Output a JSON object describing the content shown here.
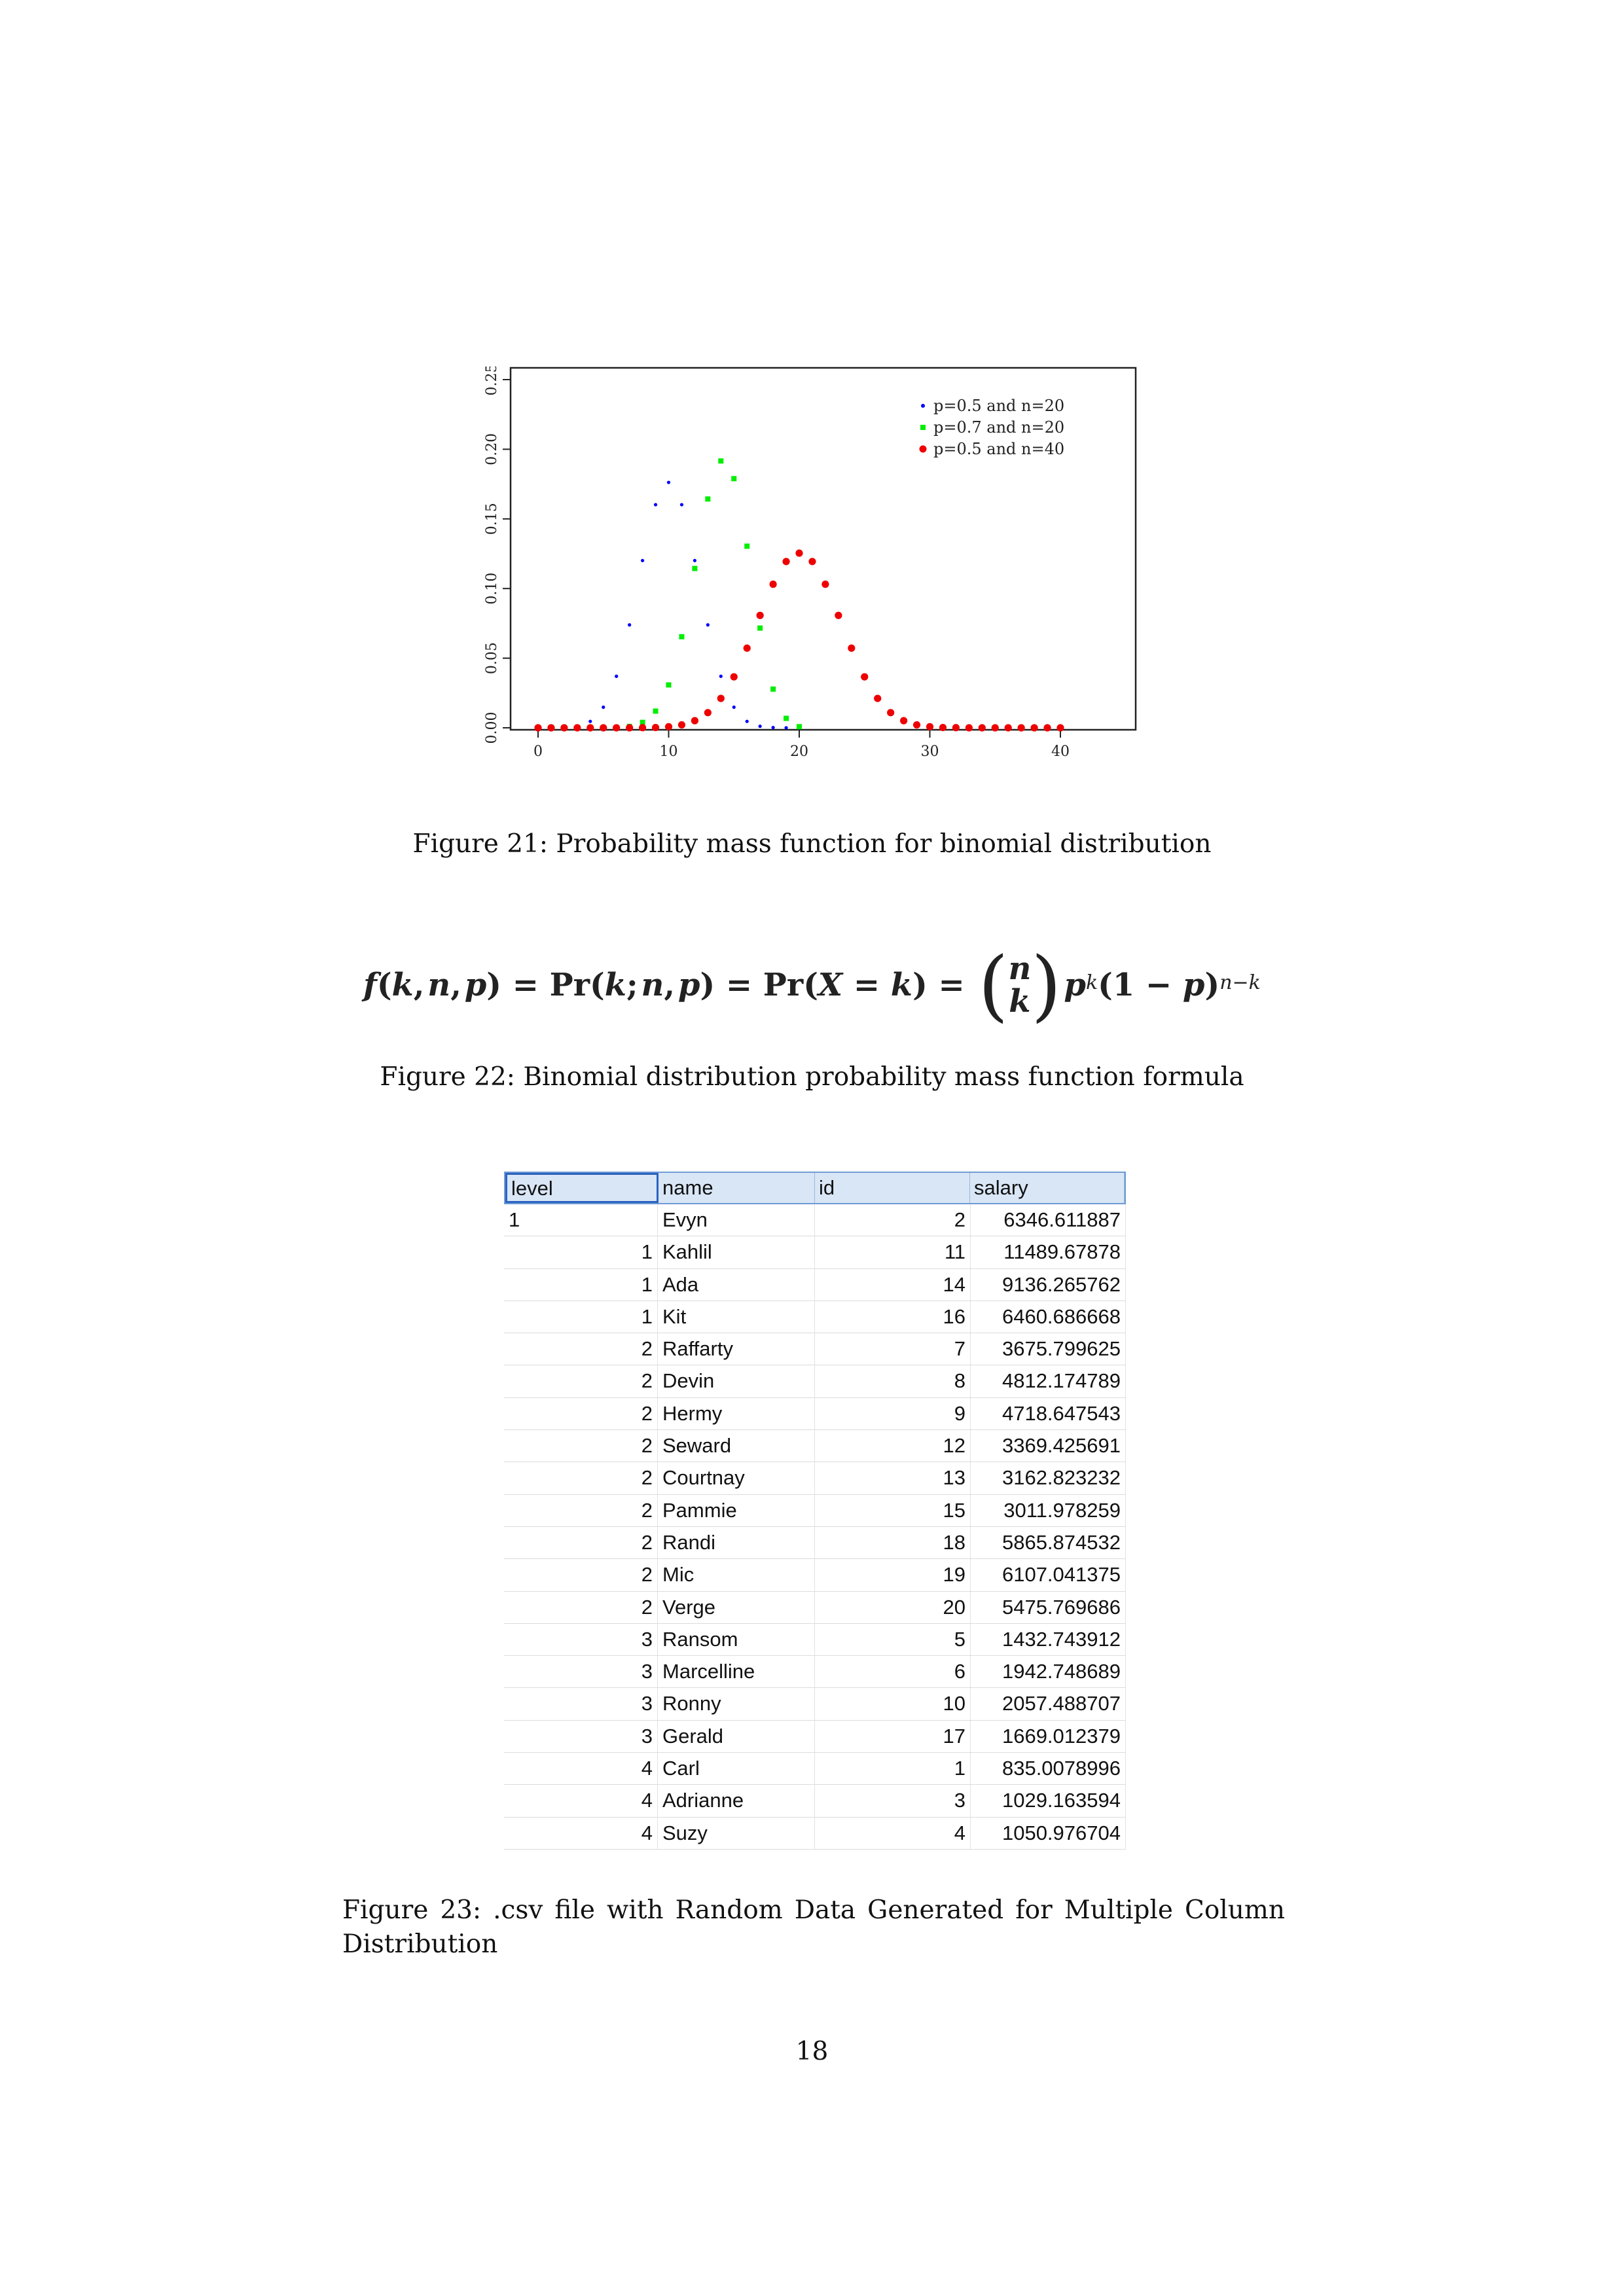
{
  "figure21": {
    "caption": "Figure 21: Probability mass function for binomial distribution",
    "chart_data": {
      "type": "scatter",
      "title": "",
      "xlabel": "",
      "ylabel": "",
      "xlim": [
        0,
        40
      ],
      "ylim": [
        0,
        0.25
      ],
      "xticks": [
        0,
        10,
        20,
        30,
        40
      ],
      "yticks": [
        "0.00",
        "0.05",
        "0.10",
        "0.15",
        "0.20",
        "0.25"
      ],
      "legend_position": "top-right",
      "grid": false,
      "series": [
        {
          "name": "p=0.5 and n=20",
          "color": "#0000ff",
          "marker_radius": 2.6,
          "x": [
            0,
            1,
            2,
            3,
            4,
            5,
            6,
            7,
            8,
            9,
            10,
            11,
            12,
            13,
            14,
            15,
            16,
            17,
            18,
            19,
            20
          ],
          "y": [
            0.0,
            0.0,
            0.0002,
            0.0011,
            0.0046,
            0.0148,
            0.037,
            0.0739,
            0.1201,
            0.1602,
            0.1762,
            0.1602,
            0.1201,
            0.0739,
            0.037,
            0.0148,
            0.0046,
            0.0011,
            0.0002,
            0.0,
            0.0
          ]
        },
        {
          "name": "p=0.7 and n=20",
          "color": "#00ee00",
          "marker_radius": 4.0,
          "x": [
            0,
            1,
            2,
            3,
            4,
            5,
            6,
            7,
            8,
            9,
            10,
            11,
            12,
            13,
            14,
            15,
            16,
            17,
            18,
            19,
            20
          ],
          "y": [
            0.0,
            0.0,
            0.0,
            0.0,
            0.0,
            0.0,
            0.0002,
            0.001,
            0.0039,
            0.012,
            0.0308,
            0.0654,
            0.1144,
            0.1643,
            0.1916,
            0.1789,
            0.1304,
            0.0716,
            0.0278,
            0.0068,
            0.0008
          ]
        },
        {
          "name": "p=0.5 and n=40",
          "color": "#ee0000",
          "marker_radius": 5.6,
          "x": [
            0,
            1,
            2,
            3,
            4,
            5,
            6,
            7,
            8,
            9,
            10,
            11,
            12,
            13,
            14,
            15,
            16,
            17,
            18,
            19,
            20,
            21,
            22,
            23,
            24,
            25,
            26,
            27,
            28,
            29,
            30,
            31,
            32,
            33,
            34,
            35,
            36,
            37,
            38,
            39,
            40
          ],
          "y": [
            0.0,
            0.0,
            0.0,
            0.0,
            0.0,
            0.0,
            0.0,
            0.0,
            0.0001,
            0.0002,
            0.0008,
            0.0021,
            0.0051,
            0.0109,
            0.0211,
            0.0366,
            0.0572,
            0.0807,
            0.1031,
            0.1194,
            0.1254,
            0.1194,
            0.1031,
            0.0807,
            0.0572,
            0.0366,
            0.0211,
            0.0109,
            0.0051,
            0.0021,
            0.0008,
            0.0002,
            0.0001,
            0.0,
            0.0,
            0.0,
            0.0,
            0.0,
            0.0,
            0.0,
            0.0
          ]
        }
      ]
    }
  },
  "figure22": {
    "caption": "Figure 22: Binomial distribution probability mass function formula"
  },
  "figure23": {
    "caption": "Figure 23: .csv file with Random Data Generated for Multiple Column Distribution",
    "columns": [
      "level",
      "name",
      "id",
      "salary"
    ],
    "rows": [
      [
        "1",
        "Evyn",
        "2",
        "6346.611887"
      ],
      [
        "1",
        "Kahlil",
        "11",
        "11489.67878"
      ],
      [
        "1",
        "Ada",
        "14",
        "9136.265762"
      ],
      [
        "1",
        "Kit",
        "16",
        "6460.686668"
      ],
      [
        "2",
        "Raffarty",
        "7",
        "3675.799625"
      ],
      [
        "2",
        "Devin",
        "8",
        "4812.174789"
      ],
      [
        "2",
        "Hermy",
        "9",
        "4718.647543"
      ],
      [
        "2",
        "Seward",
        "12",
        "3369.425691"
      ],
      [
        "2",
        "Courtnay",
        "13",
        "3162.823232"
      ],
      [
        "2",
        "Pammie",
        "15",
        "3011.978259"
      ],
      [
        "2",
        "Randi",
        "18",
        "5865.874532"
      ],
      [
        "2",
        "Mic",
        "19",
        "6107.041375"
      ],
      [
        "2",
        "Verge",
        "20",
        "5475.769686"
      ],
      [
        "3",
        "Ransom",
        "5",
        "1432.743912"
      ],
      [
        "3",
        "Marcelline",
        "6",
        "1942.748689"
      ],
      [
        "3",
        "Ronny",
        "10",
        "2057.488707"
      ],
      [
        "3",
        "Gerald",
        "17",
        "1669.012379"
      ],
      [
        "4",
        "Carl",
        "1",
        "835.0078996"
      ],
      [
        "4",
        "Adrianne",
        "3",
        "1029.163594"
      ],
      [
        "4",
        "Suzy",
        "4",
        "1050.976704"
      ]
    ]
  },
  "page_number": "18"
}
